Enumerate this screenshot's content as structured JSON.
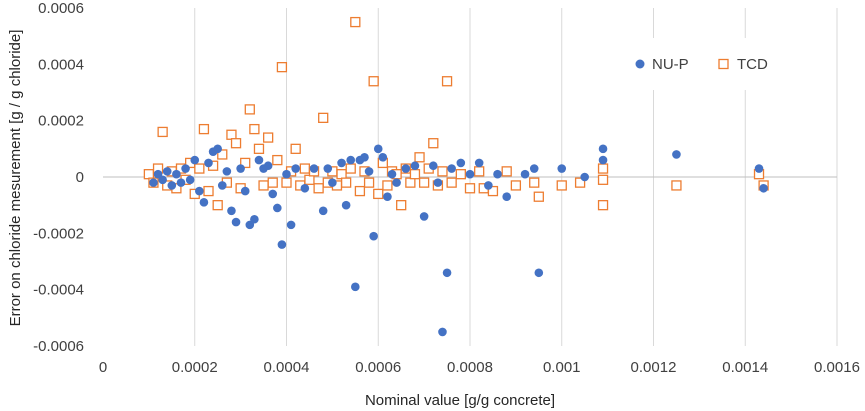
{
  "chart_data": {
    "type": "scatter",
    "title": "",
    "xlabel": "Nominal value [g/g concrete]",
    "ylabel": "Error on chloride mesurement [g / g chloride]",
    "xlim": [
      0,
      0.0016
    ],
    "ylim": [
      -0.0006,
      0.0006
    ],
    "x_ticks": [
      0,
      0.0002,
      0.0004,
      0.0006,
      0.0008,
      0.001,
      0.0012,
      0.0014,
      0.0016
    ],
    "x_tick_labels": [
      "0",
      "0.0002",
      "0.0004",
      "0.0006",
      "0.0008",
      "0.001",
      "0.0012",
      "0.0014",
      "0.0016"
    ],
    "y_ticks": [
      -0.0006,
      -0.0004,
      -0.0002,
      0,
      0.0002,
      0.0004,
      0.0006
    ],
    "y_tick_labels": [
      "-0.0006",
      "-0.0004",
      "-0.0002",
      "0",
      "0.0002",
      "0.0004",
      "0.0006"
    ],
    "grid": "vertical gridlines",
    "legend_position": "top-right",
    "series": [
      {
        "name": "NU-P",
        "marker": "filled-circle",
        "color": "#4472C4",
        "points": [
          [
            0.00011,
            -2e-05
          ],
          [
            0.00012,
            1e-05
          ],
          [
            0.00013,
            -1e-05
          ],
          [
            0.00014,
            2e-05
          ],
          [
            0.00015,
            -3e-05
          ],
          [
            0.00016,
            1e-05
          ],
          [
            0.00017,
            -2e-05
          ],
          [
            0.00018,
            3e-05
          ],
          [
            0.00019,
            -1e-05
          ],
          [
            0.0002,
            6e-05
          ],
          [
            0.00021,
            -5e-05
          ],
          [
            0.00022,
            -9e-05
          ],
          [
            0.00023,
            5e-05
          ],
          [
            0.00024,
            9e-05
          ],
          [
            0.00025,
            0.0001
          ],
          [
            0.00026,
            -3e-05
          ],
          [
            0.00027,
            2e-05
          ],
          [
            0.00028,
            -0.00012
          ],
          [
            0.00029,
            -0.00016
          ],
          [
            0.0003,
            3e-05
          ],
          [
            0.00031,
            -5e-05
          ],
          [
            0.00032,
            -0.00017
          ],
          [
            0.00033,
            -0.00015
          ],
          [
            0.00034,
            6e-05
          ],
          [
            0.00035,
            3e-05
          ],
          [
            0.00036,
            4e-05
          ],
          [
            0.00037,
            -6e-05
          ],
          [
            0.00038,
            -0.00011
          ],
          [
            0.00039,
            -0.00024
          ],
          [
            0.0004,
            1e-05
          ],
          [
            0.00041,
            -0.00017
          ],
          [
            0.00042,
            3e-05
          ],
          [
            0.00044,
            -4e-05
          ],
          [
            0.00046,
            3e-05
          ],
          [
            0.00048,
            -0.00012
          ],
          [
            0.00049,
            3e-05
          ],
          [
            0.0005,
            -2e-05
          ],
          [
            0.00052,
            5e-05
          ],
          [
            0.00053,
            -0.0001
          ],
          [
            0.00054,
            6e-05
          ],
          [
            0.00055,
            -0.00039
          ],
          [
            0.00056,
            6e-05
          ],
          [
            0.00057,
            7e-05
          ],
          [
            0.00058,
            2e-05
          ],
          [
            0.00059,
            -0.00021
          ],
          [
            0.0006,
            0.0001
          ],
          [
            0.00061,
            7e-05
          ],
          [
            0.00062,
            -7e-05
          ],
          [
            0.00063,
            1e-05
          ],
          [
            0.00064,
            -2e-05
          ],
          [
            0.00066,
            3e-05
          ],
          [
            0.00068,
            4e-05
          ],
          [
            0.0007,
            -0.00014
          ],
          [
            0.00072,
            4e-05
          ],
          [
            0.00073,
            -2e-05
          ],
          [
            0.00074,
            -0.00055
          ],
          [
            0.00075,
            -0.00034
          ],
          [
            0.00076,
            3e-05
          ],
          [
            0.00078,
            5e-05
          ],
          [
            0.0008,
            1e-05
          ],
          [
            0.00082,
            5e-05
          ],
          [
            0.00084,
            -3e-05
          ],
          [
            0.00086,
            1e-05
          ],
          [
            0.00088,
            -7e-05
          ],
          [
            0.00092,
            1e-05
          ],
          [
            0.00094,
            3e-05
          ],
          [
            0.00095,
            -0.00034
          ],
          [
            0.001,
            3e-05
          ],
          [
            0.00105,
            0
          ],
          [
            0.00109,
            6e-05
          ],
          [
            0.00109,
            0.0001
          ],
          [
            0.00125,
            8e-05
          ],
          [
            0.00143,
            3e-05
          ],
          [
            0.00144,
            -4e-05
          ]
        ]
      },
      {
        "name": "TCD",
        "marker": "open-square",
        "color": "#ED7D31",
        "points": [
          [
            0.0001,
            1e-05
          ],
          [
            0.00011,
            -2e-05
          ],
          [
            0.00012,
            3e-05
          ],
          [
            0.00013,
            0.00016
          ],
          [
            0.00014,
            -3e-05
          ],
          [
            0.00015,
            2e-05
          ],
          [
            0.00016,
            -4e-05
          ],
          [
            0.00017,
            3e-05
          ],
          [
            0.00018,
            -1e-05
          ],
          [
            0.00019,
            5e-05
          ],
          [
            0.0002,
            -6e-05
          ],
          [
            0.00021,
            3e-05
          ],
          [
            0.00022,
            0.00017
          ],
          [
            0.00023,
            -5e-05
          ],
          [
            0.00024,
            4e-05
          ],
          [
            0.00025,
            -0.0001
          ],
          [
            0.00026,
            8e-05
          ],
          [
            0.00027,
            -2e-05
          ],
          [
            0.00028,
            0.00015
          ],
          [
            0.00029,
            0.00012
          ],
          [
            0.0003,
            -4e-05
          ],
          [
            0.00031,
            5e-05
          ],
          [
            0.00032,
            0.00024
          ],
          [
            0.00033,
            0.00017
          ],
          [
            0.00034,
            0.0001
          ],
          [
            0.00035,
            -3e-05
          ],
          [
            0.00036,
            0.00014
          ],
          [
            0.00037,
            -2e-05
          ],
          [
            0.00038,
            6e-05
          ],
          [
            0.00039,
            0.00039
          ],
          [
            0.0004,
            -2e-05
          ],
          [
            0.00041,
            2e-05
          ],
          [
            0.00042,
            0.0001
          ],
          [
            0.00043,
            -3e-05
          ],
          [
            0.00044,
            3e-05
          ],
          [
            0.00045,
            -1e-05
          ],
          [
            0.00046,
            2e-05
          ],
          [
            0.00047,
            -4e-05
          ],
          [
            0.00048,
            0.00021
          ],
          [
            0.00049,
            -2e-05
          ],
          [
            0.0005,
            2e-05
          ],
          [
            0.00051,
            -3e-05
          ],
          [
            0.00052,
            1e-05
          ],
          [
            0.00053,
            -2e-05
          ],
          [
            0.00054,
            3e-05
          ],
          [
            0.00055,
            0.00055
          ],
          [
            0.00056,
            -5e-05
          ],
          [
            0.00057,
            2e-05
          ],
          [
            0.00058,
            -2e-05
          ],
          [
            0.00059,
            0.00034
          ],
          [
            0.0006,
            -6e-05
          ],
          [
            0.00061,
            5e-05
          ],
          [
            0.00062,
            -3e-05
          ],
          [
            0.00063,
            2e-05
          ],
          [
            0.00064,
            1e-05
          ],
          [
            0.00065,
            -0.0001
          ],
          [
            0.00066,
            3e-05
          ],
          [
            0.00067,
            -2e-05
          ],
          [
            0.00068,
            1e-05
          ],
          [
            0.00069,
            7e-05
          ],
          [
            0.0007,
            -2e-05
          ],
          [
            0.00071,
            3e-05
          ],
          [
            0.00072,
            0.00012
          ],
          [
            0.00073,
            -3e-05
          ],
          [
            0.00074,
            2e-05
          ],
          [
            0.00075,
            0.00034
          ],
          [
            0.00076,
            -2e-05
          ],
          [
            0.00078,
            1e-05
          ],
          [
            0.0008,
            -4e-05
          ],
          [
            0.00082,
            2e-05
          ],
          [
            0.00083,
            -4e-05
          ],
          [
            0.00085,
            -5e-05
          ],
          [
            0.00088,
            2e-05
          ],
          [
            0.0009,
            -3e-05
          ],
          [
            0.00094,
            -2e-05
          ],
          [
            0.00095,
            -7e-05
          ],
          [
            0.001,
            -3e-05
          ],
          [
            0.00104,
            -2e-05
          ],
          [
            0.00109,
            3e-05
          ],
          [
            0.00109,
            -1e-05
          ],
          [
            0.00109,
            -0.0001
          ],
          [
            0.00125,
            -3e-05
          ],
          [
            0.00143,
            1e-05
          ],
          [
            0.00144,
            -3e-05
          ]
        ]
      }
    ]
  }
}
